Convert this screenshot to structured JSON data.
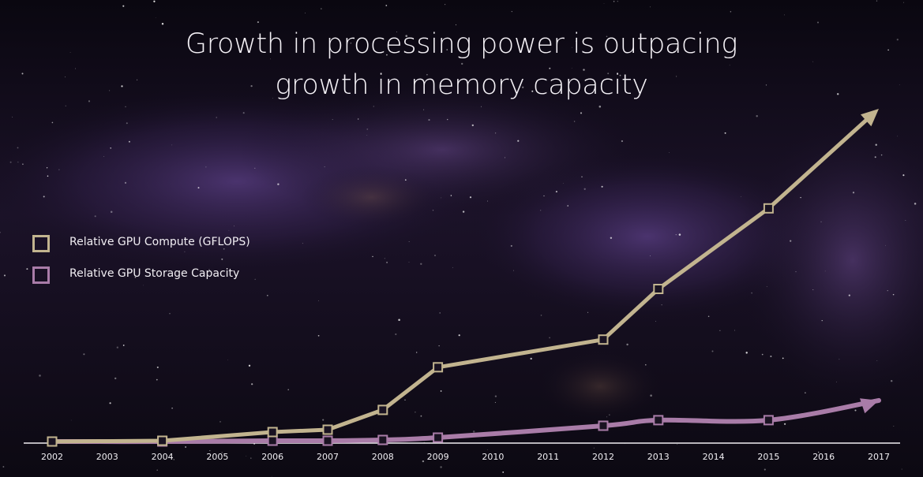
{
  "chart_data": {
    "type": "line",
    "title_lines": [
      "Growth in processing power is outpacing",
      "growth in memory capacity"
    ],
    "xlabel": "",
    "ylabel": "",
    "x_categories": [
      "2002",
      "2003",
      "2004",
      "2005",
      "2006",
      "2007",
      "2008",
      "2009",
      "2010",
      "2011",
      "2012",
      "2013",
      "2014",
      "2015",
      "2016",
      "2017"
    ],
    "ylim": [
      0,
      420
    ],
    "grid": false,
    "legend_placement": "left",
    "series": [
      {
        "name": "Relative GPU Compute (GFLOPS)",
        "color": "#c2b48f",
        "x": [
          "2002",
          "2004",
          "2006",
          "2007",
          "2008",
          "2009",
          "2012",
          "2013",
          "2015"
        ],
        "values": [
          1,
          2,
          13,
          16,
          41,
          95,
          130,
          194,
          296
        ],
        "arrow_to": {
          "x": "2017",
          "value": 422
        }
      },
      {
        "name": "Relative GPU Storage Capacity",
        "color": "#a97ca8",
        "x": [
          "2002",
          "2004",
          "2006",
          "2007",
          "2008",
          "2009",
          "2012",
          "2013",
          "2015"
        ],
        "values": [
          1,
          1,
          2,
          2,
          3,
          6,
          21,
          28,
          28
        ],
        "arrow_to": {
          "x": "2017",
          "value": 53
        }
      }
    ]
  },
  "colors": {
    "axis": "#f0eef2",
    "tick_label": "#f0eef2",
    "title": "#f4f1f6"
  }
}
